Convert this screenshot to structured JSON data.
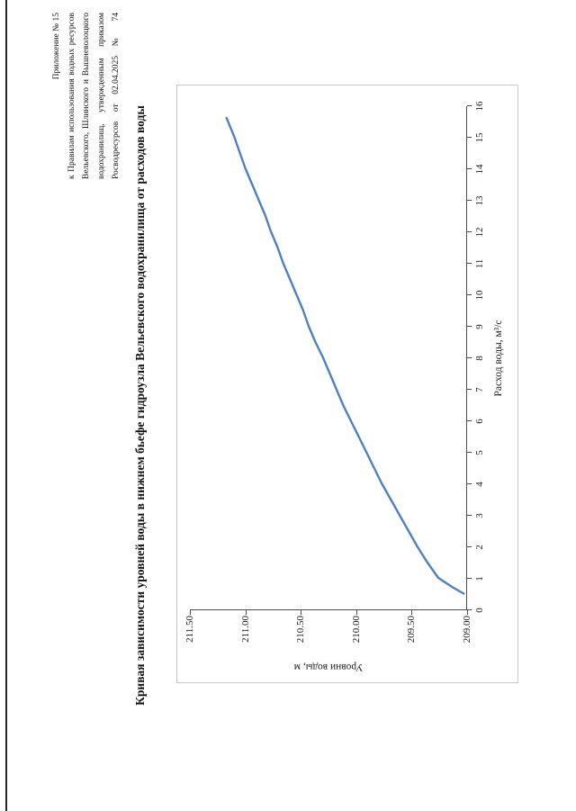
{
  "document": {
    "header_lines": [
      "Приложение № 15",
      "к Правилам использования водных ресурсов",
      "Вельевского, Шлинского и Вышневолоцкого",
      "водохранилищ, утвержденным приказом",
      "Росводресурсов от 02.04.2025 № 74"
    ],
    "title": "Кривая зависимости уровней воды в нижнем бьефе гидроузла Вельевского водохранилища от расходов воды"
  },
  "chart_data": {
    "type": "line",
    "title": "Кривая зависимости уровней воды в нижнем бьефе гидроузла Вельевского водохранилища от расходов воды",
    "xlabel": "Расход воды, м³/с",
    "ylabel": "Уровни воды, м",
    "xlim": [
      0,
      16
    ],
    "ylim": [
      209.0,
      211.5
    ],
    "x_ticks": [
      0,
      1,
      2,
      3,
      4,
      5,
      6,
      7,
      8,
      9,
      10,
      11,
      12,
      13,
      14,
      15,
      16
    ],
    "y_ticks": [
      209.0,
      209.5,
      210.0,
      210.5,
      211.0,
      211.5
    ],
    "y_tick_labels": [
      "209.00",
      "209.50",
      "210.00",
      "210.50",
      "211.00",
      "211.50"
    ],
    "grid": false,
    "legend": "none",
    "line_color": "#4f81bd",
    "axis_color": "#4d4d4d",
    "points": [
      [
        0.5,
        209.03
      ],
      [
        0.7,
        209.13
      ],
      [
        1,
        209.26
      ],
      [
        1.5,
        209.36
      ],
      [
        2,
        209.45
      ],
      [
        2.5,
        209.53
      ],
      [
        3,
        209.61
      ],
      [
        3.5,
        209.69
      ],
      [
        4,
        209.77
      ],
      [
        4.5,
        209.84
      ],
      [
        5,
        209.91
      ],
      [
        5.5,
        209.98
      ],
      [
        6,
        210.05
      ],
      [
        6.5,
        210.12
      ],
      [
        7,
        210.18
      ],
      [
        7.5,
        210.24
      ],
      [
        8,
        210.3
      ],
      [
        8.5,
        210.37
      ],
      [
        9,
        210.43
      ],
      [
        9.5,
        210.48
      ],
      [
        10,
        210.54
      ],
      [
        10.5,
        210.6
      ],
      [
        11,
        210.66
      ],
      [
        11.5,
        210.71
      ],
      [
        12,
        210.77
      ],
      [
        12.5,
        210.82
      ],
      [
        13,
        210.88
      ],
      [
        13.5,
        210.94
      ],
      [
        14,
        211.0
      ],
      [
        14.5,
        211.05
      ],
      [
        15,
        211.1
      ],
      [
        15.6,
        211.17
      ]
    ]
  }
}
